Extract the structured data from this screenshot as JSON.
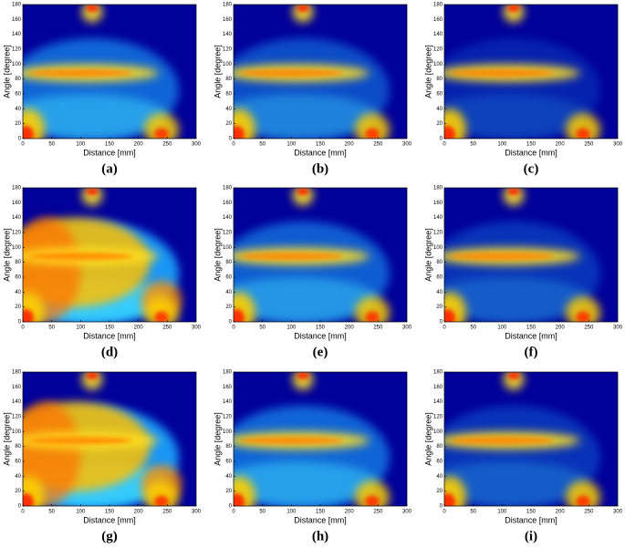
{
  "chart_data": [
    {
      "type": "heatmap",
      "title": "(a)",
      "xlabel": "Distance [mm]",
      "ylabel": "Angle [degree]",
      "xlim": [
        0,
        300
      ],
      "ylim": [
        0,
        180
      ],
      "xticks": [
        0,
        50,
        100,
        150,
        200,
        250,
        300
      ],
      "yticks": [
        0,
        20,
        40,
        60,
        80,
        100,
        120,
        140,
        160,
        180
      ]
    },
    {
      "type": "heatmap",
      "title": "(b)",
      "xlabel": "Distance [mm]",
      "ylabel": "Angle [degree]",
      "xlim": [
        0,
        300
      ],
      "ylim": [
        0,
        180
      ],
      "xticks": [
        0,
        50,
        100,
        150,
        200,
        250,
        300
      ],
      "yticks": [
        0,
        20,
        40,
        60,
        80,
        100,
        120,
        140,
        160,
        180
      ]
    },
    {
      "type": "heatmap",
      "title": "(c)",
      "xlabel": "Distance [mm]",
      "ylabel": "Angle [degree]",
      "xlim": [
        0,
        300
      ],
      "ylim": [
        0,
        180
      ],
      "xticks": [
        0,
        50,
        100,
        150,
        200,
        250,
        300
      ],
      "yticks": [
        0,
        20,
        40,
        60,
        80,
        100,
        120,
        140,
        160,
        180
      ]
    },
    {
      "type": "heatmap",
      "title": "(d)",
      "xlabel": "Distance [mm]",
      "ylabel": "Angle [degree]",
      "xlim": [
        0,
        300
      ],
      "ylim": [
        0,
        180
      ],
      "xticks": [
        0,
        50,
        100,
        150,
        200,
        250,
        300
      ],
      "yticks": [
        0,
        20,
        40,
        60,
        80,
        100,
        120,
        140,
        160,
        180
      ]
    },
    {
      "type": "heatmap",
      "title": "(e)",
      "xlabel": "Distance [mm]",
      "ylabel": "Angle [degree]",
      "xlim": [
        0,
        300
      ],
      "ylim": [
        0,
        180
      ],
      "xticks": [
        0,
        50,
        100,
        150,
        200,
        250,
        300
      ],
      "yticks": [
        0,
        20,
        40,
        60,
        80,
        100,
        120,
        140,
        160,
        180
      ]
    },
    {
      "type": "heatmap",
      "title": "(f)",
      "xlabel": "Distance [mm]",
      "ylabel": "Angle [degree]",
      "xlim": [
        0,
        300
      ],
      "ylim": [
        0,
        180
      ],
      "xticks": [
        0,
        50,
        100,
        150,
        200,
        250,
        300
      ],
      "yticks": [
        0,
        20,
        40,
        60,
        80,
        100,
        120,
        140,
        160,
        180
      ]
    },
    {
      "type": "heatmap",
      "title": "(g)",
      "xlabel": "Distance [mm]",
      "ylabel": "Angle [degree]",
      "xlim": [
        0,
        300
      ],
      "ylim": [
        0,
        180
      ],
      "xticks": [
        0,
        50,
        100,
        150,
        200,
        250,
        300
      ],
      "yticks": [
        0,
        20,
        40,
        60,
        80,
        100,
        120,
        140,
        160,
        180
      ]
    },
    {
      "type": "heatmap",
      "title": "(h)",
      "xlabel": "Distance [mm]",
      "ylabel": "Angle [degree]",
      "xlim": [
        0,
        300
      ],
      "ylim": [
        0,
        180
      ],
      "xticks": [
        0,
        50,
        100,
        150,
        200,
        250,
        300
      ],
      "yticks": [
        0,
        20,
        40,
        60,
        80,
        100,
        120,
        140,
        160,
        180
      ]
    },
    {
      "type": "heatmap",
      "title": "(i)",
      "xlabel": "Distance [mm]",
      "ylabel": "Angle [degree]",
      "xlim": [
        0,
        300
      ],
      "ylim": [
        0,
        180
      ],
      "xticks": [
        0,
        50,
        100,
        150,
        200,
        250,
        300
      ],
      "yticks": [
        0,
        20,
        40,
        60,
        80,
        100,
        120,
        140,
        160,
        180
      ]
    }
  ]
}
